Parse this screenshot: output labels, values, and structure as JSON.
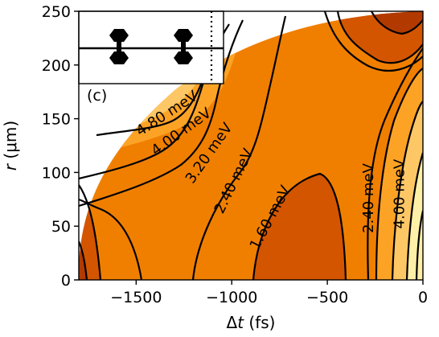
{
  "chart_data": {
    "type": "contour",
    "xlabel_prefix": "Δ",
    "xlabel_var": "t",
    "xlabel_unit": " (fs)",
    "ylabel_var": "r",
    "ylabel_unit": " (μm)",
    "xlim": [
      -1800,
      0
    ],
    "ylim": [
      0,
      250
    ],
    "xticks": [
      -1500,
      -1000,
      -500,
      0
    ],
    "xtick_labels": [
      "−1500",
      "−1000",
      "−500",
      "0"
    ],
    "yticks": [
      0,
      50,
      100,
      150,
      200,
      250
    ],
    "ytick_labels": [
      "0",
      "50",
      "100",
      "150",
      "200",
      "250"
    ],
    "contour_levels_meV": [
      0.8,
      1.6,
      2.4,
      3.2,
      4.0,
      4.8
    ],
    "contour_labels": [
      {
        "text": "4.80 meV",
        "x": -1340,
        "y": 155,
        "angle": -33
      },
      {
        "text": "4.00 meV",
        "x": -1265,
        "y": 138,
        "angle": -36
      },
      {
        "text": "3.20 meV",
        "x": -1120,
        "y": 118,
        "angle": -55
      },
      {
        "text": "2.40 meV",
        "x": -990,
        "y": 92,
        "angle": -64
      },
      {
        "text": "1.60 meV",
        "x": -800,
        "y": 58,
        "angle": -62
      },
      {
        "text": "2.40 meV",
        "x": -285,
        "y": 76,
        "angle": -90
      },
      {
        "text": "4.00 meV",
        "x": -125,
        "y": 80,
        "angle": -90
      }
    ],
    "domain_boundary": "circular quadrant, r^2 + Δt^2 scaled ≤ 1",
    "inset": {
      "panel_label": "(c)",
      "dotted_line": true,
      "vertical_line": true,
      "horizontal_line": true
    },
    "colors": {
      "lowest": "#b23a00",
      "low": "#d45500",
      "mid": "#f07f00",
      "midhigh": "#fca326",
      "high": "#fdc766",
      "highest": "#fff0a8"
    }
  }
}
